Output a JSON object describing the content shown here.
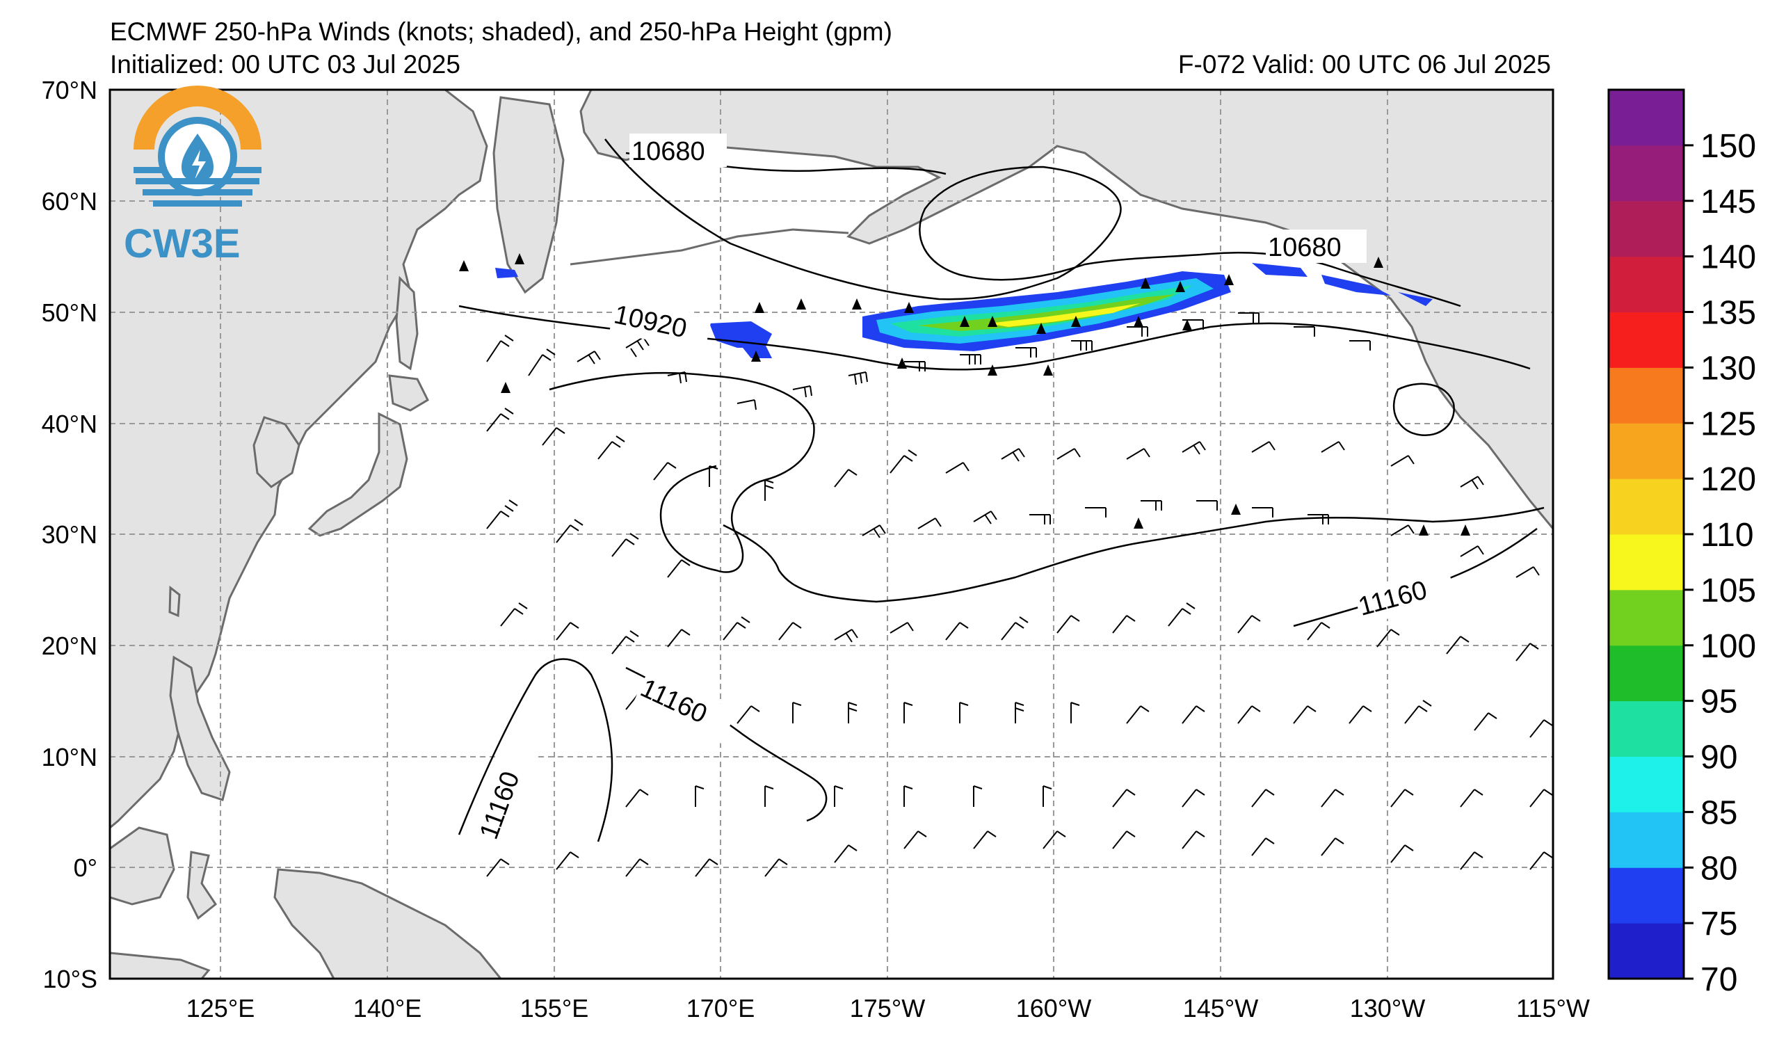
{
  "header": {
    "title": "ECMWF 250-hPa Winds (knots; shaded), and 250-hPa Height (gpm)",
    "initialized": "Initialized: 00 UTC 03 Jul 2025",
    "valid": "F-072  Valid: 00 UTC 06 Jul 2025"
  },
  "logo": {
    "text": "CW3E",
    "icon": "water-drop-lightning-icon"
  },
  "axes": {
    "lat_labels": [
      "70°N",
      "60°N",
      "50°N",
      "40°N",
      "30°N",
      "20°N",
      "10°N",
      "0°",
      "10°S"
    ],
    "lon_labels": [
      "125°E",
      "140°E",
      "155°E",
      "170°E",
      "175°W",
      "160°W",
      "145°W",
      "130°W",
      "115°W"
    ]
  },
  "contour_labels": [
    {
      "text": "10680"
    },
    {
      "text": "10680"
    },
    {
      "text": "10920"
    },
    {
      "text": "11160"
    },
    {
      "text": "11160"
    },
    {
      "text": "11160"
    }
  ],
  "colorbar": {
    "labels": [
      "70",
      "75",
      "80",
      "85",
      "90",
      "95",
      "100",
      "105",
      "110",
      "120",
      "125",
      "130",
      "135",
      "140",
      "145",
      "150"
    ],
    "colors": [
      "#1f1fcc",
      "#1f3ff0",
      "#22c4f5",
      "#1ef0ea",
      "#1ee0a0",
      "#1fbd2a",
      "#72d11e",
      "#f7f71e",
      "#f7d21e",
      "#f7a51e",
      "#f77a1e",
      "#f71e1e",
      "#d11e3c",
      "#b01e5a",
      "#961e7a",
      "#7a1e96"
    ]
  },
  "colors": {
    "land": "#e3e3e3",
    "coast": "#6b6b6b",
    "grid": "#999999",
    "logo_orange": "#f4a02a",
    "logo_blue": "#3c91c6"
  }
}
